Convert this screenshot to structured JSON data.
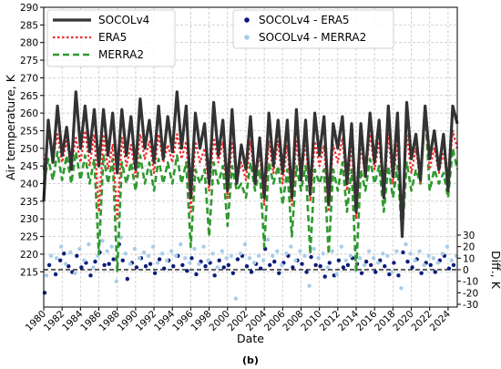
{
  "chart_data": {
    "type": "line",
    "xlabel": "Date",
    "ylabel_left": "Air temperature, K",
    "ylabel_right": "Diff., K",
    "xlim": [
      1980,
      2025
    ],
    "ylim_left": [
      205,
      290
    ],
    "ylim_right": [
      -30,
      30
    ],
    "x_ticks": [
      1980,
      1982,
      1984,
      1986,
      1988,
      1990,
      1992,
      1994,
      1996,
      1998,
      2000,
      2002,
      2004,
      2006,
      2008,
      2010,
      2012,
      2014,
      2016,
      2018,
      2020,
      2022,
      2024
    ],
    "y_ticks_left": [
      215,
      220,
      225,
      230,
      235,
      240,
      245,
      250,
      255,
      260,
      265,
      270,
      275,
      280,
      285,
      290
    ],
    "y_ticks_right": [
      -30,
      -20,
      -10,
      0,
      10,
      20,
      30
    ],
    "panel_label": "(b)",
    "legend_left": {
      "position": "top-left"
    },
    "legend_right": {
      "position": "top-center"
    },
    "colors": {
      "SOCOLv4": "#333333",
      "ERA5": "#ee2a2a",
      "MERRA2": "#2e9a2e",
      "SOCOLv4 - ERA5": "#0b1c7a",
      "SOCOLv4 - MERRA2": "#a9cde9",
      "zero_line": "#000000"
    },
    "series": [
      {
        "name": "SOCOLv4",
        "style": "solid",
        "x": [
          1980.0,
          1980.5,
          1981.0,
          1981.5,
          1982.0,
          1982.5,
          1983.0,
          1983.5,
          1984.0,
          1984.5,
          1985.0,
          1985.5,
          1986.0,
          1986.5,
          1987.0,
          1987.5,
          1988.0,
          1988.5,
          1989.0,
          1989.5,
          1990.0,
          1990.5,
          1991.0,
          1991.5,
          1992.0,
          1992.5,
          1993.0,
          1993.5,
          1994.0,
          1994.5,
          1995.0,
          1995.5,
          1996.0,
          1996.5,
          1997.0,
          1997.5,
          1998.0,
          1998.5,
          1999.0,
          1999.5,
          2000.0,
          2000.5,
          2001.0,
          2001.5,
          2002.0,
          2002.5,
          2003.0,
          2003.5,
          2004.0,
          2004.5,
          2005.0,
          2005.5,
          2006.0,
          2006.5,
          2007.0,
          2007.5,
          2008.0,
          2008.5,
          2009.0,
          2009.5,
          2010.0,
          2010.5,
          2011.0,
          2011.5,
          2012.0,
          2012.5,
          2013.0,
          2013.5,
          2014.0,
          2014.5,
          2015.0,
          2015.5,
          2016.0,
          2016.5,
          2017.0,
          2017.5,
          2018.0,
          2018.5,
          2019.0,
          2019.5,
          2020.0,
          2020.5,
          2021.0,
          2021.5,
          2022.0,
          2022.5,
          2023.0,
          2023.5,
          2024.0,
          2024.5,
          2025.0
        ],
        "values": [
          235,
          258,
          246,
          262,
          248,
          256,
          244,
          266,
          250,
          262,
          249,
          261,
          245,
          261,
          248,
          260,
          243,
          261,
          248,
          259,
          244,
          264,
          250,
          258,
          246,
          262,
          247,
          259,
          249,
          266,
          250,
          262,
          236,
          260,
          250,
          257,
          240,
          263,
          248,
          258,
          238,
          261,
          240,
          251,
          244,
          259,
          240,
          253,
          236,
          260,
          245,
          258,
          243,
          258,
          236,
          261,
          241,
          258,
          237,
          260,
          248,
          259,
          234,
          257,
          250,
          259,
          240,
          257,
          232,
          257,
          242,
          260,
          246,
          258,
          236,
          262,
          242,
          260,
          225,
          263,
          247,
          254,
          241,
          262,
          247,
          255,
          244,
          254,
          238,
          262,
          257
        ]
      },
      {
        "name": "ERA5",
        "style": "dotted",
        "x": [
          1980.0,
          1980.5,
          1981.0,
          1981.5,
          1982.0,
          1982.5,
          1983.0,
          1983.5,
          1984.0,
          1984.5,
          1985.0,
          1985.5,
          1986.0,
          1986.5,
          1987.0,
          1987.5,
          1988.0,
          1988.5,
          1989.0,
          1989.5,
          1990.0,
          1990.5,
          1991.0,
          1991.5,
          1992.0,
          1992.5,
          1993.0,
          1993.5,
          1994.0,
          1994.5,
          1995.0,
          1995.5,
          1996.0,
          1996.5,
          1997.0,
          1997.5,
          1998.0,
          1998.5,
          1999.0,
          1999.5,
          2000.0,
          2000.5,
          2001.0,
          2001.5,
          2002.0,
          2002.5,
          2003.0,
          2003.5,
          2004.0,
          2004.5,
          2005.0,
          2005.5,
          2006.0,
          2006.5,
          2007.0,
          2007.5,
          2008.0,
          2008.5,
          2009.0,
          2009.5,
          2010.0,
          2010.5,
          2011.0,
          2011.5,
          2012.0,
          2012.5,
          2013.0,
          2013.5,
          2014.0,
          2014.5,
          2015.0,
          2015.5,
          2016.0,
          2016.5,
          2017.0,
          2017.5,
          2018.0,
          2018.5,
          2019.0,
          2019.5,
          2020.0,
          2020.5,
          2021.0,
          2021.5,
          2022.0,
          2022.5,
          2023.0,
          2023.5,
          2024.0,
          2024.5,
          2025.0
        ],
        "values": [
          244,
          255,
          247,
          254,
          246,
          252,
          245,
          253,
          246,
          255,
          245,
          254,
          232,
          254,
          244,
          251,
          230,
          253,
          245,
          251,
          242,
          254,
          247,
          252,
          243,
          254,
          246,
          251,
          246,
          254,
          247,
          252,
          232,
          252,
          246,
          250,
          238,
          253,
          246,
          252,
          236,
          252,
          241,
          246,
          241,
          252,
          240,
          249,
          234,
          252,
          243,
          252,
          240,
          251,
          234,
          252,
          241,
          252,
          235,
          252,
          245,
          251,
          232,
          251,
          246,
          253,
          238,
          251,
          230,
          251,
          242,
          254,
          244,
          252,
          236,
          254,
          240,
          252,
          232,
          254,
          243,
          250,
          240,
          260,
          244,
          250,
          243,
          249,
          240,
          255,
          250
        ]
      },
      {
        "name": "MERRA2",
        "style": "dashed",
        "x": [
          1980.0,
          1980.5,
          1981.0,
          1981.5,
          1982.0,
          1982.5,
          1983.0,
          1983.5,
          1984.0,
          1984.5,
          1985.0,
          1985.5,
          1986.0,
          1986.5,
          1987.0,
          1987.5,
          1988.0,
          1988.5,
          1989.0,
          1989.5,
          1990.0,
          1990.5,
          1991.0,
          1991.5,
          1992.0,
          1992.5,
          1993.0,
          1993.5,
          1994.0,
          1994.5,
          1995.0,
          1995.5,
          1996.0,
          1996.5,
          1997.0,
          1997.5,
          1998.0,
          1998.5,
          1999.0,
          1999.5,
          2000.0,
          2000.5,
          2001.0,
          2001.5,
          2002.0,
          2002.5,
          2003.0,
          2003.5,
          2004.0,
          2004.5,
          2005.0,
          2005.5,
          2006.0,
          2006.5,
          2007.0,
          2007.5,
          2008.0,
          2008.5,
          2009.0,
          2009.5,
          2010.0,
          2010.5,
          2011.0,
          2011.5,
          2012.0,
          2012.5,
          2013.0,
          2013.5,
          2014.0,
          2014.5,
          2015.0,
          2015.5,
          2016.0,
          2016.5,
          2017.0,
          2017.5,
          2018.0,
          2018.5,
          2019.0,
          2019.5,
          2020.0,
          2020.5,
          2021.0,
          2021.5,
          2022.0,
          2022.5,
          2023.0,
          2023.5,
          2024.0,
          2024.5,
          2025.0
        ],
        "values": [
          240,
          247,
          241,
          249,
          241,
          248,
          240,
          249,
          241,
          248,
          240,
          247,
          220,
          248,
          240,
          247,
          215,
          246,
          240,
          246,
          238,
          248,
          240,
          246,
          238,
          247,
          240,
          246,
          240,
          248,
          240,
          246,
          222,
          244,
          240,
          244,
          225,
          246,
          240,
          245,
          228,
          245,
          238,
          240,
          236,
          246,
          238,
          244,
          222,
          246,
          240,
          245,
          234,
          244,
          225,
          245,
          238,
          245,
          220,
          244,
          240,
          244,
          220,
          244,
          238,
          246,
          232,
          244,
          215,
          244,
          238,
          247,
          240,
          245,
          232,
          245,
          236,
          245,
          225,
          246,
          238,
          244,
          240,
          261,
          238,
          244,
          240,
          243,
          236,
          250,
          244
        ]
      },
      {
        "name": "SOCOLv4 - ERA5",
        "style": "markers",
        "x": [
          1980.1,
          1980.6,
          1981.3,
          1981.8,
          1982.2,
          1982.7,
          1983.1,
          1983.6,
          1984.1,
          1984.6,
          1985.1,
          1985.6,
          1986.1,
          1986.6,
          1987.1,
          1987.6,
          1988.2,
          1988.6,
          1989.1,
          1989.6,
          1990.1,
          1990.6,
          1991.1,
          1991.6,
          1992.1,
          1992.6,
          1993.1,
          1993.6,
          1994.1,
          1994.6,
          1995.1,
          1995.6,
          1996.1,
          1996.6,
          1997.1,
          1997.6,
          1998.1,
          1998.6,
          1999.1,
          1999.6,
          2000.1,
          2000.6,
          2001.1,
          2001.6,
          2002.1,
          2002.6,
          2003.1,
          2003.6,
          2004.1,
          2004.6,
          2005.1,
          2005.6,
          2006.1,
          2006.6,
          2007.1,
          2007.6,
          2008.1,
          2008.6,
          2009.1,
          2009.6,
          2010.1,
          2010.6,
          2011.1,
          2011.6,
          2012.1,
          2012.6,
          2013.1,
          2013.6,
          2014.1,
          2014.6,
          2015.1,
          2015.6,
          2016.1,
          2016.6,
          2017.1,
          2017.6,
          2018.1,
          2018.6,
          2019.1,
          2019.6,
          2020.1,
          2020.6,
          2021.1,
          2021.6,
          2022.1,
          2022.6,
          2023.1,
          2023.6,
          2024.1,
          2024.6
        ],
        "values": [
          -20,
          4,
          -4,
          8,
          14,
          3,
          -2,
          12,
          2,
          6,
          -5,
          7,
          15,
          4,
          5,
          9,
          22,
          8,
          -8,
          6,
          2,
          10,
          3,
          5,
          -3,
          9,
          1,
          8,
          3,
          12,
          4,
          -1,
          10,
          -4,
          7,
          3,
          6,
          -5,
          8,
          2,
          4,
          -3,
          9,
          12,
          3,
          -2,
          5,
          1,
          18,
          4,
          7,
          -3,
          6,
          12,
          2,
          8,
          5,
          -2,
          11,
          4,
          3,
          -6,
          6,
          -5,
          8,
          2,
          4,
          10,
          5,
          -3,
          7,
          4,
          -2,
          8,
          3,
          -4,
          6,
          -5,
          15,
          7,
          2,
          9,
          -3,
          6,
          4,
          -2,
          8,
          12,
          1,
          4
        ]
      },
      {
        "name": "SOCOLv4 - MERRA2",
        "style": "markers",
        "x": [
          1980.3,
          1980.8,
          1981.4,
          1981.9,
          1982.4,
          1982.9,
          1983.4,
          1983.9,
          1984.4,
          1984.9,
          1985.4,
          1985.9,
          1986.4,
          1986.9,
          1987.4,
          1987.9,
          1988.4,
          1988.9,
          1989.4,
          1989.9,
          1990.4,
          1990.9,
          1991.4,
          1991.9,
          1992.4,
          1992.9,
          1993.4,
          1993.9,
          1994.4,
          1994.9,
          1995.4,
          1995.9,
          1996.4,
          1996.9,
          1997.4,
          1997.9,
          1998.4,
          1998.9,
          1999.4,
          1999.9,
          2000.4,
          2000.9,
          2001.4,
          2001.9,
          2002.4,
          2002.9,
          2003.4,
          2003.9,
          2004.4,
          2004.9,
          2005.4,
          2005.9,
          2006.4,
          2006.9,
          2007.4,
          2007.9,
          2008.4,
          2008.9,
          2009.4,
          2009.9,
          2010.4,
          2010.9,
          2011.4,
          2011.9,
          2012.4,
          2012.9,
          2013.4,
          2013.9,
          2014.4,
          2014.9,
          2015.4,
          2015.9,
          2016.4,
          2016.9,
          2017.4,
          2017.9,
          2018.4,
          2018.9,
          2019.4,
          2019.9,
          2020.4,
          2020.9,
          2021.4,
          2021.9,
          2022.4,
          2022.9,
          2023.4,
          2023.9,
          2024.4,
          2024.9
        ],
        "values": [
          -5,
          12,
          10,
          20,
          5,
          15,
          -3,
          18,
          8,
          22,
          2,
          12,
          25,
          16,
          20,
          -10,
          28,
          14,
          5,
          18,
          10,
          15,
          12,
          20,
          6,
          14,
          8,
          16,
          12,
          22,
          10,
          6,
          18,
          5,
          20,
          8,
          14,
          2,
          16,
          10,
          12,
          -25,
          14,
          22,
          10,
          6,
          12,
          8,
          26,
          12,
          16,
          4,
          14,
          20,
          8,
          16,
          12,
          -14,
          18,
          10,
          14,
          2,
          16,
          -4,
          20,
          8,
          12,
          18,
          10,
          4,
          16,
          10,
          6,
          14,
          12,
          -2,
          16,
          -16,
          22,
          14,
          8,
          16,
          4,
          12,
          10,
          6,
          14,
          20,
          8,
          12
        ]
      }
    ]
  }
}
